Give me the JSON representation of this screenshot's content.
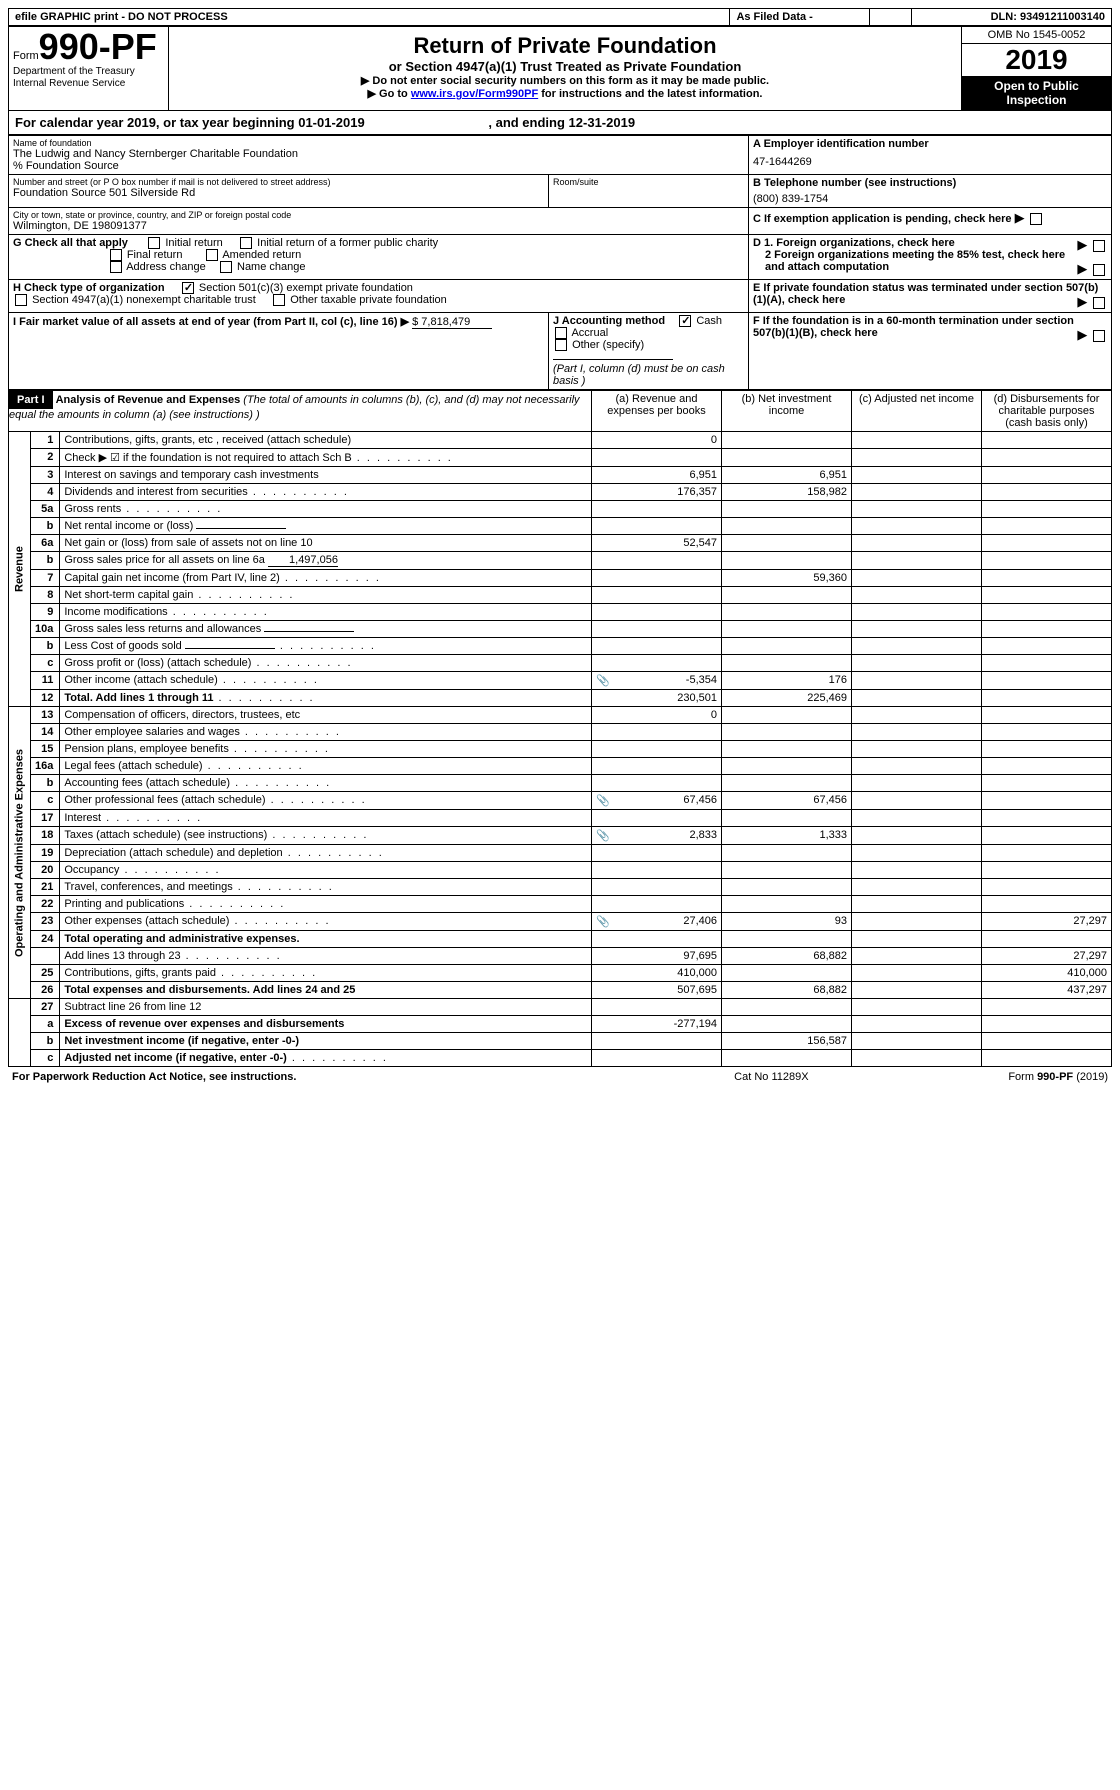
{
  "topbar": {
    "efile": "efile GRAPHIC print - DO NOT PROCESS",
    "asfiled": "As Filed Data -",
    "dln_label": "DLN:",
    "dln": "93491211003140"
  },
  "header": {
    "form_prefix": "Form",
    "form_num": "990-PF",
    "dept1": "Department of the Treasury",
    "dept2": "Internal Revenue Service",
    "title": "Return of Private Foundation",
    "subtitle": "or Section 4947(a)(1) Trust Treated as Private Foundation",
    "note1": "▶ Do not enter social security numbers on this form as it may be made public.",
    "note2_pre": "▶ Go to ",
    "note2_link": "www.irs.gov/Form990PF",
    "note2_post": " for instructions and the latest information.",
    "omb": "OMB No 1545-0052",
    "year": "2019",
    "inspect": "Open to Public Inspection"
  },
  "calyear": {
    "text": "For calendar year 2019, or tax year beginning 01-01-2019",
    "ending_label": ", and ending",
    "ending": "12-31-2019"
  },
  "info": {
    "name_label": "Name of foundation",
    "name": "The Ludwig and Nancy Sternberger Charitable Foundation",
    "care_of": "% Foundation Source",
    "addr_label": "Number and street (or P O  box number if mail is not delivered to street address)",
    "addr": "Foundation Source 501 Silverside Rd",
    "room_label": "Room/suite",
    "city_label": "City or town, state or province, country, and ZIP or foreign postal code",
    "city": "Wilmington, DE  198091377",
    "A_label": "A Employer identification number",
    "A_val": "47-1644269",
    "B_label": "B Telephone number (see instructions)",
    "B_val": "(800) 839-1754",
    "C_label": "C If exemption application is pending, check here",
    "G_label": "G Check all that apply",
    "G_opts": [
      "Initial return",
      "Initial return of a former public charity",
      "Final return",
      "Amended return",
      "Address change",
      "Name change"
    ],
    "D1_label": "D 1. Foreign organizations, check here",
    "D2_label": "2 Foreign organizations meeting the 85% test, check here and attach computation",
    "E_label": "E  If private foundation status was terminated under section 507(b)(1)(A), check here",
    "H_label": "H Check type of organization",
    "H_opt1": "Section 501(c)(3) exempt private foundation",
    "H_opt2": "Section 4947(a)(1) nonexempt charitable trust",
    "H_opt3": "Other taxable private foundation",
    "I_label": "I Fair market value of all assets at end of year (from Part II, col  (c), line 16) ▶",
    "I_val": "$  7,818,479",
    "J_label": "J Accounting method",
    "J_cash": "Cash",
    "J_accrual": "Accrual",
    "J_other": "Other (specify)",
    "J_note": "(Part I, column (d) must be on cash basis )",
    "F_label": "F  If the foundation is in a 60-month termination under section 507(b)(1)(B), check here"
  },
  "part1": {
    "label": "Part I",
    "title": "Analysis of Revenue and Expenses",
    "title_note": " (The total of amounts in columns (b), (c), and (d) may not necessarily equal the amounts in column (a) (see instructions) )",
    "col_a": "(a) Revenue and expenses per books",
    "col_b": "(b) Net investment income",
    "col_c": "(c) Adjusted net income",
    "col_d": "(d) Disbursements for charitable purposes (cash basis only)",
    "revenue_label": "Revenue",
    "expenses_label": "Operating and Administrative Expenses"
  },
  "rows": [
    {
      "n": "1",
      "d": "Contributions, gifts, grants, etc , received (attach schedule)",
      "a": "0",
      "b": "",
      "c": "",
      "dd": ""
    },
    {
      "n": "2",
      "d": "Check ▶ ☑ if the foundation is not required to attach Sch  B",
      "dots": true
    },
    {
      "n": "3",
      "d": "Interest on savings and temporary cash investments",
      "a": "6,951",
      "b": "6,951"
    },
    {
      "n": "4",
      "d": "Dividends and interest from securities",
      "dots": true,
      "a": "176,357",
      "b": "158,982"
    },
    {
      "n": "5a",
      "d": "Gross rents",
      "dots": true
    },
    {
      "n": "b",
      "d": "Net rental income or (loss)",
      "inline_blank": true
    },
    {
      "n": "6a",
      "d": "Net gain or (loss) from sale of assets not on line 10",
      "a": "52,547"
    },
    {
      "n": "b",
      "d": "Gross sales price for all assets on line 6a",
      "inline_val": "1,497,056"
    },
    {
      "n": "7",
      "d": "Capital gain net income (from Part IV, line 2)",
      "dots": true,
      "b": "59,360"
    },
    {
      "n": "8",
      "d": "Net short-term capital gain",
      "dots": true
    },
    {
      "n": "9",
      "d": "Income modifications",
      "dots": true
    },
    {
      "n": "10a",
      "d": "Gross sales less returns and allowances",
      "inline_blank": true
    },
    {
      "n": "b",
      "d": "Less  Cost of goods sold",
      "dots": true,
      "inline_blank": true
    },
    {
      "n": "c",
      "d": "Gross profit or (loss) (attach schedule)",
      "dots": true
    },
    {
      "n": "11",
      "d": "Other income (attach schedule)",
      "dots": true,
      "icon": true,
      "a": "-5,354",
      "b": "176"
    },
    {
      "n": "12",
      "d": "Total. Add lines 1 through 11",
      "dots": true,
      "bold": true,
      "a": "230,501",
      "b": "225,469"
    }
  ],
  "exp_rows": [
    {
      "n": "13",
      "d": "Compensation of officers, directors, trustees, etc",
      "a": "0"
    },
    {
      "n": "14",
      "d": "Other employee salaries and wages",
      "dots": true
    },
    {
      "n": "15",
      "d": "Pension plans, employee benefits",
      "dots": true
    },
    {
      "n": "16a",
      "d": "Legal fees (attach schedule)",
      "dots": true
    },
    {
      "n": "b",
      "d": "Accounting fees (attach schedule)",
      "dots": true
    },
    {
      "n": "c",
      "d": "Other professional fees (attach schedule)",
      "dots": true,
      "icon": true,
      "a": "67,456",
      "b": "67,456"
    },
    {
      "n": "17",
      "d": "Interest",
      "dots": true
    },
    {
      "n": "18",
      "d": "Taxes (attach schedule) (see instructions)",
      "dots": true,
      "icon": true,
      "a": "2,833",
      "b": "1,333"
    },
    {
      "n": "19",
      "d": "Depreciation (attach schedule) and depletion",
      "dots": true
    },
    {
      "n": "20",
      "d": "Occupancy",
      "dots": true
    },
    {
      "n": "21",
      "d": "Travel, conferences, and meetings",
      "dots": true
    },
    {
      "n": "22",
      "d": "Printing and publications",
      "dots": true
    },
    {
      "n": "23",
      "d": "Other expenses (attach schedule)",
      "dots": true,
      "icon": true,
      "a": "27,406",
      "b": "93",
      "dd": "27,297"
    },
    {
      "n": "24",
      "d": "Total operating and administrative expenses.",
      "bold": true
    },
    {
      "n": "",
      "d": "Add lines 13 through 23",
      "dots": true,
      "a": "97,695",
      "b": "68,882",
      "dd": "27,297"
    },
    {
      "n": "25",
      "d": "Contributions, gifts, grants paid",
      "dots": true,
      "a": "410,000",
      "dd": "410,000"
    },
    {
      "n": "26",
      "d": "Total expenses and disbursements. Add lines 24 and 25",
      "bold": true,
      "a": "507,695",
      "b": "68,882",
      "dd": "437,297"
    }
  ],
  "net_rows": [
    {
      "n": "27",
      "d": "Subtract line 26 from line 12"
    },
    {
      "n": "a",
      "d": "Excess of revenue over expenses and disbursements",
      "bold": true,
      "a": "-277,194"
    },
    {
      "n": "b",
      "d": "Net investment income (if negative, enter -0-)",
      "bold": true,
      "b": "156,587"
    },
    {
      "n": "c",
      "d": "Adjusted net income (if negative, enter -0-)",
      "bold": true,
      "dots": true
    }
  ],
  "footer": {
    "left": "For Paperwork Reduction Act Notice, see instructions.",
    "mid": "Cat  No  11289X",
    "right": "Form 990-PF (2019)"
  }
}
